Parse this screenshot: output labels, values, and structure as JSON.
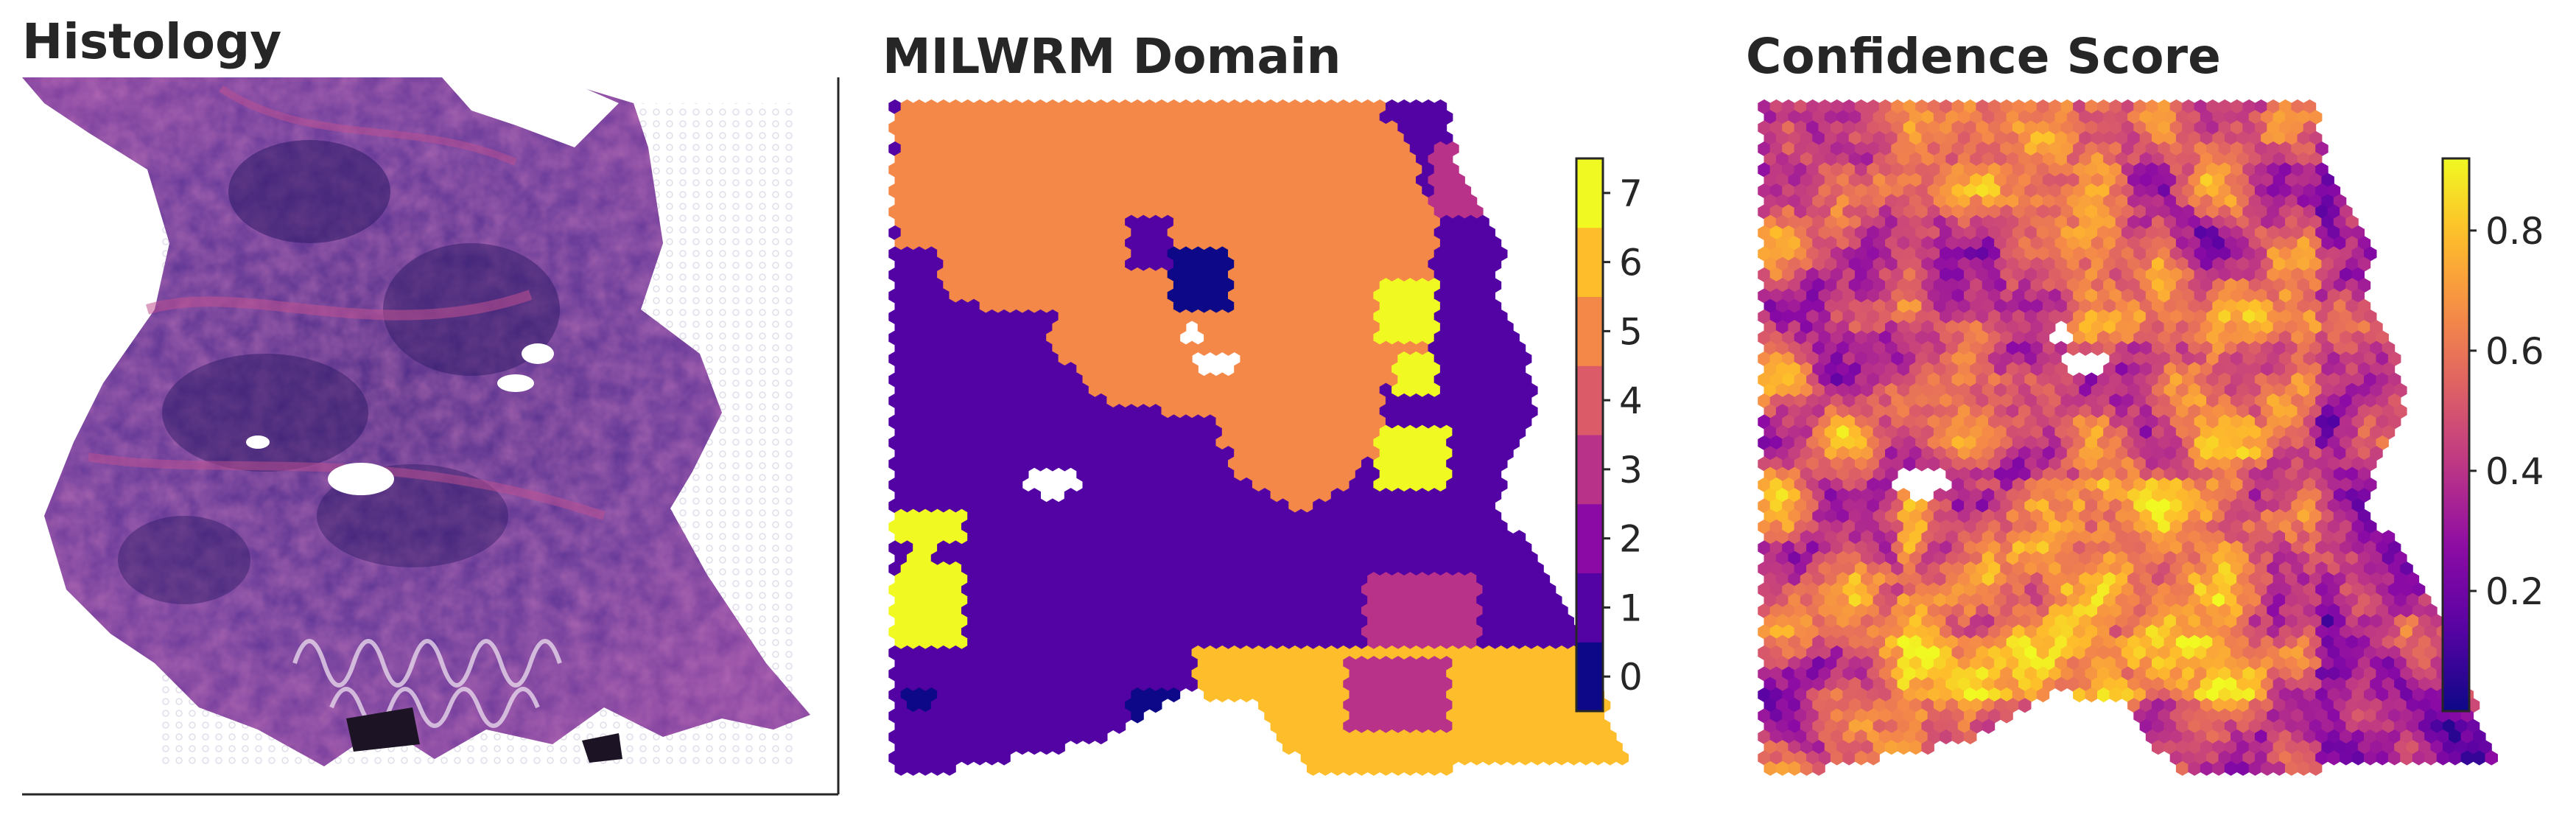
{
  "panels": {
    "histology": {
      "title": "Histology"
    },
    "domain": {
      "title": "MILWRM Domain"
    },
    "confidence": {
      "title": "Confidence Score"
    }
  },
  "chart_data": [
    {
      "type": "image",
      "title": "Histology",
      "description_colors": {
        "background": "#ffffff",
        "tissue_dark": "#3a2070",
        "tissue_mid": "#6a3a9a",
        "stroma_pink": "#b04a8a"
      }
    },
    {
      "type": "heatmap",
      "title": "MILWRM Domain",
      "colormap": "plasma (discrete)",
      "colorbar": {
        "ticks": [
          "0",
          "1",
          "2",
          "3",
          "4",
          "5",
          "6",
          "7"
        ],
        "range": [
          -0.5,
          7.5
        ],
        "colors": [
          "#0d0887",
          "#5302a3",
          "#8b0aa5",
          "#b83289",
          "#db5c68",
          "#f48849",
          "#febd2a",
          "#f0f921"
        ]
      },
      "domains_present": [
        1,
        2,
        3,
        5,
        6,
        7,
        0
      ],
      "dominant_domain": 1
    },
    {
      "type": "heatmap",
      "title": "Confidence Score",
      "colormap": "plasma",
      "colorbar": {
        "ticks": [
          "0.2",
          "0.4",
          "0.6",
          "0.8"
        ],
        "range": [
          0.0,
          0.92
        ]
      }
    }
  ]
}
